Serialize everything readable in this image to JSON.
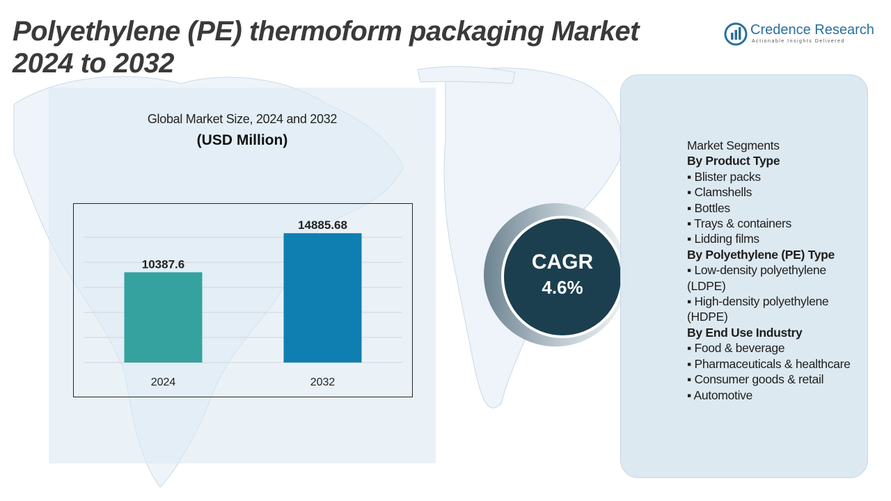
{
  "title_line1": "Polyethylene (PE) thermoform packaging Market",
  "title_line2": "2024 to 2032",
  "logo": {
    "brand": "Credence Research",
    "tagline": "Actionable Insights Delivered",
    "color": "#2a6f9a"
  },
  "chart_data": {
    "type": "bar",
    "title": "Global Market Size, 2024 and 2032",
    "subtitle": "(USD Million)",
    "categories": [
      "2024",
      "2032"
    ],
    "values": [
      10387.6,
      14885.68
    ],
    "value_labels": [
      "10387.6",
      "14885.68"
    ],
    "colors": [
      "#35a29f",
      "#0e7fb0"
    ],
    "ylim": [
      0,
      16500
    ],
    "grid": true,
    "legend": "none"
  },
  "cagr": {
    "label": "CAGR",
    "value": "4.6%",
    "circle_color": "#1b3f4e"
  },
  "segments": {
    "heading": "Market Segments",
    "groups": [
      {
        "title": "By Product Type",
        "items": [
          "▪ Blister packs",
          "▪ Clamshells",
          "▪ Bottles",
          "▪ Trays & containers",
          "▪ Lidding films"
        ]
      },
      {
        "title": "By Polyethylene (PE) Type",
        "items": [
          "▪ Low-density polyethylene (LDPE)",
          "▪ High-density polyethylene (HDPE)"
        ]
      },
      {
        "title": "By End Use Industry",
        "items": [
          "▪ Food & beverage",
          "▪ Pharmaceuticals & healthcare",
          "▪ Consumer goods & retail",
          "▪ Automotive"
        ]
      }
    ]
  }
}
